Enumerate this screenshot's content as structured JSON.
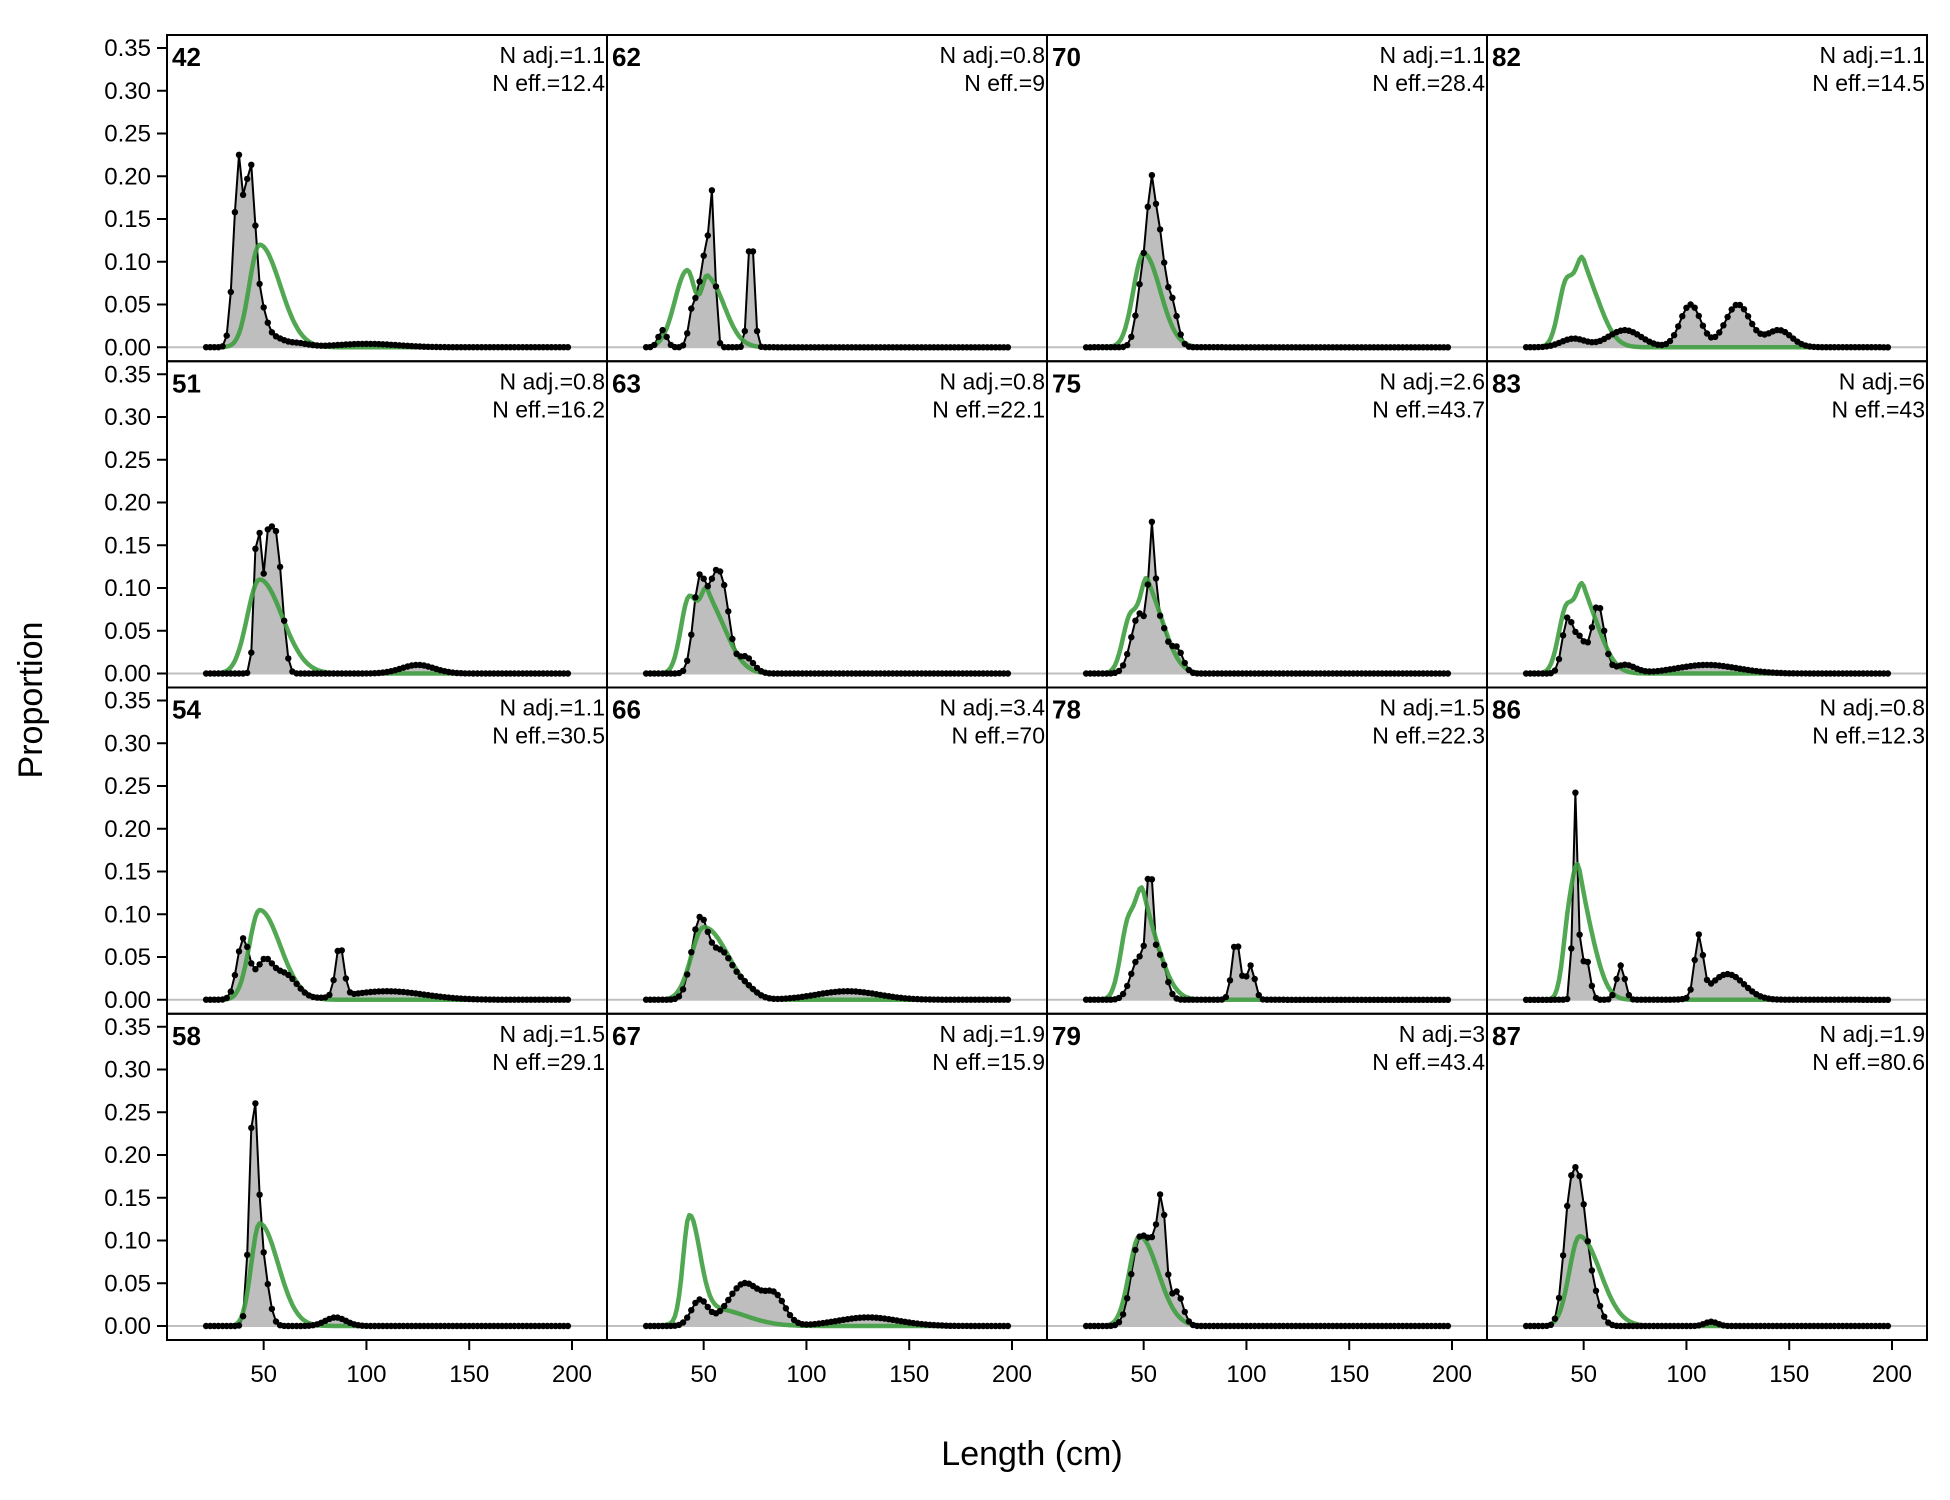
{
  "chart_data": {
    "type": "line",
    "xlabel": "Length (cm)",
    "ylabel": "Proportion",
    "xlim": [
      20,
      200
    ],
    "ylim": [
      0,
      0.35
    ],
    "x_ticks": [
      50,
      100,
      150,
      200
    ],
    "y_ticks": [
      0.0,
      0.05,
      0.1,
      0.15,
      0.2,
      0.25,
      0.3,
      0.35
    ],
    "y_tick_labels": [
      "0.00",
      "0.05",
      "0.10",
      "0.15",
      "0.20",
      "0.25",
      "0.30",
      "0.35"
    ],
    "x": [
      22,
      24,
      26,
      28,
      30,
      32,
      34,
      36,
      38,
      40,
      42,
      44,
      46,
      48,
      50,
      52,
      54,
      56,
      58,
      60,
      62,
      64,
      66,
      68,
      70,
      72,
      74,
      76,
      78,
      80,
      82,
      84,
      86,
      88,
      90,
      92,
      94,
      96,
      98,
      100,
      102,
      104,
      106,
      108,
      110,
      112,
      114,
      116,
      118,
      120,
      122,
      124,
      126,
      128,
      130,
      132,
      134,
      136,
      138,
      140,
      142,
      144,
      146,
      148,
      150,
      152,
      154,
      156,
      158,
      160,
      162,
      164,
      166,
      168,
      170,
      172,
      174,
      176,
      178,
      180,
      182,
      184,
      186,
      188,
      190,
      192,
      194,
      196,
      198
    ],
    "colors": {
      "observed_fill": "#bebebe",
      "observed_line": "#000000",
      "expected_line": "#3f9f3f",
      "zero_line": "#bfbfbf"
    },
    "panels": [
      {
        "label": "42",
        "n_adj": "N adj.=1.1",
        "n_eff": "N eff.=12.4",
        "peaks": [
          [
            36,
            0.1,
            2
          ],
          [
            38,
            0.13,
            1.5
          ],
          [
            41,
            0.1,
            2
          ],
          [
            44,
            0.16,
            2
          ],
          [
            48,
            0.05,
            3
          ],
          [
            55,
            0.01,
            4
          ],
          [
            65,
            0.005,
            6
          ],
          [
            100,
            0.004,
            15
          ]
        ],
        "expected": [
          [
            48,
            0.12,
            5,
            10
          ]
        ]
      },
      {
        "label": "51",
        "n_adj": "N adj.=0.8",
        "n_eff": "N eff.=16.2",
        "peaks": [
          [
            47,
            0.18,
            1.5
          ],
          [
            52,
            0.15,
            2
          ],
          [
            56,
            0.13,
            2
          ],
          [
            59,
            0.05,
            2
          ],
          [
            125,
            0.01,
            8
          ]
        ],
        "expected": [
          [
            48,
            0.11,
            6,
            11
          ]
        ]
      },
      {
        "label": "54",
        "n_adj": "N adj.=1.1",
        "n_eff": "N eff.=30.5",
        "peaks": [
          [
            40,
            0.07,
            3
          ],
          [
            50,
            0.04,
            4
          ],
          [
            60,
            0.03,
            6
          ],
          [
            87,
            0.06,
            2
          ],
          [
            110,
            0.01,
            18
          ]
        ],
        "expected": [
          [
            48,
            0.105,
            5,
            10
          ]
        ]
      },
      {
        "label": "58",
        "n_adj": "N adj.=1.5",
        "n_eff": "N eff.=29.1",
        "peaks": [
          [
            45,
            0.24,
            2
          ],
          [
            49,
            0.08,
            3
          ],
          [
            85,
            0.01,
            5
          ]
        ],
        "expected": [
          [
            48,
            0.12,
            4,
            9
          ]
        ]
      },
      {
        "label": "62",
        "n_adj": "N adj.=0.8",
        "n_eff": "N eff.=9",
        "peaks": [
          [
            30,
            0.02,
            2
          ],
          [
            45,
            0.05,
            2
          ],
          [
            50,
            0.1,
            2
          ],
          [
            54,
            0.17,
            1.5
          ],
          [
            73,
            0.14,
            1.5
          ]
        ],
        "expected": [
          [
            42,
            0.09,
            6,
            4
          ],
          [
            52,
            0.08,
            3,
            8
          ]
        ]
      },
      {
        "label": "63",
        "n_adj": "N adj.=0.8",
        "n_eff": "N eff.=22.1",
        "peaks": [
          [
            48,
            0.11,
            3
          ],
          [
            55,
            0.09,
            3
          ],
          [
            60,
            0.08,
            3
          ],
          [
            70,
            0.02,
            4
          ]
        ],
        "expected": [
          [
            43,
            0.09,
            4,
            5
          ],
          [
            52,
            0.08,
            3,
            9
          ]
        ]
      },
      {
        "label": "66",
        "n_adj": "N adj.=3.4",
        "n_eff": "N eff.=70",
        "peaks": [
          [
            48,
            0.09,
            4
          ],
          [
            58,
            0.05,
            5
          ],
          [
            68,
            0.02,
            6
          ],
          [
            120,
            0.01,
            15
          ]
        ],
        "expected": [
          [
            50,
            0.085,
            6,
            12
          ]
        ]
      },
      {
        "label": "67",
        "n_adj": "N adj.=1.9",
        "n_eff": "N eff.=15.9",
        "peaks": [
          [
            48,
            0.03,
            4
          ],
          [
            70,
            0.05,
            8
          ],
          [
            85,
            0.03,
            5
          ],
          [
            130,
            0.01,
            15
          ]
        ],
        "expected": [
          [
            43,
            0.12,
            3,
            5
          ],
          [
            55,
            0.02,
            10,
            15
          ]
        ]
      },
      {
        "label": "70",
        "n_adj": "N adj.=1.1",
        "n_eff": "N eff.=28.4",
        "peaks": [
          [
            50,
            0.09,
            3
          ],
          [
            54,
            0.15,
            2
          ],
          [
            58,
            0.1,
            2
          ],
          [
            63,
            0.06,
            3
          ]
        ],
        "expected": [
          [
            50,
            0.11,
            5,
            8
          ]
        ]
      },
      {
        "label": "75",
        "n_adj": "N adj.=2.6",
        "n_eff": "N eff.=43.7",
        "peaks": [
          [
            48,
            0.07,
            4
          ],
          [
            54,
            0.13,
            1.5
          ],
          [
            58,
            0.06,
            3
          ],
          [
            66,
            0.03,
            3
          ]
        ],
        "expected": [
          [
            44,
            0.07,
            4,
            5
          ],
          [
            52,
            0.09,
            3,
            8
          ]
        ]
      },
      {
        "label": "78",
        "n_adj": "N adj.=1.5",
        "n_eff": "N eff.=22.3",
        "peaks": [
          [
            48,
            0.05,
            4
          ],
          [
            53,
            0.13,
            1.5
          ],
          [
            58,
            0.05,
            3
          ],
          [
            95,
            0.07,
            2
          ],
          [
            102,
            0.04,
            2
          ]
        ],
        "expected": [
          [
            43,
            0.095,
            4,
            5
          ],
          [
            50,
            0.09,
            3,
            8
          ]
        ]
      },
      {
        "label": "79",
        "n_adj": "N adj.=3",
        "n_eff": "N eff.=43.4",
        "peaks": [
          [
            48,
            0.1,
            4
          ],
          [
            55,
            0.07,
            3
          ],
          [
            59,
            0.12,
            2
          ],
          [
            66,
            0.04,
            3
          ]
        ],
        "expected": [
          [
            48,
            0.105,
            5,
            9
          ]
        ]
      },
      {
        "label": "82",
        "n_adj": "N adj.=1.1",
        "n_eff": "N eff.=14.5",
        "peaks": [
          [
            45,
            0.01,
            6
          ],
          [
            70,
            0.02,
            8
          ],
          [
            102,
            0.05,
            5
          ],
          [
            125,
            0.05,
            6
          ],
          [
            145,
            0.02,
            6
          ]
        ],
        "expected": [
          [
            42,
            0.08,
            4,
            5
          ],
          [
            50,
            0.08,
            3,
            8
          ]
        ]
      },
      {
        "label": "83",
        "n_adj": "N adj.=6",
        "n_eff": "N eff.=43",
        "peaks": [
          [
            42,
            0.06,
            2.5
          ],
          [
            48,
            0.04,
            3
          ],
          [
            57,
            0.08,
            3
          ],
          [
            70,
            0.01,
            5
          ],
          [
            110,
            0.01,
            15
          ]
        ],
        "expected": [
          [
            42,
            0.08,
            4,
            5
          ],
          [
            50,
            0.08,
            3,
            8
          ]
        ]
      },
      {
        "label": "86",
        "n_adj": "N adj.=0.8",
        "n_eff": "N eff.=12.3",
        "peaks": [
          [
            46,
            0.24,
            1.2
          ],
          [
            51,
            0.05,
            2
          ],
          [
            68,
            0.04,
            2
          ],
          [
            106,
            0.07,
            2
          ],
          [
            120,
            0.03,
            8
          ]
        ],
        "expected": [
          [
            43,
            0.09,
            3,
            4
          ],
          [
            48,
            0.11,
            3,
            7
          ]
        ]
      },
      {
        "label": "87",
        "n_adj": "N adj.=1.9",
        "n_eff": "N eff.=80.6",
        "peaks": [
          [
            43,
            0.13,
            3
          ],
          [
            48,
            0.12,
            3
          ],
          [
            53,
            0.05,
            4
          ],
          [
            112,
            0.005,
            3
          ]
        ],
        "expected": [
          [
            48,
            0.105,
            5,
            10
          ]
        ]
      }
    ]
  }
}
